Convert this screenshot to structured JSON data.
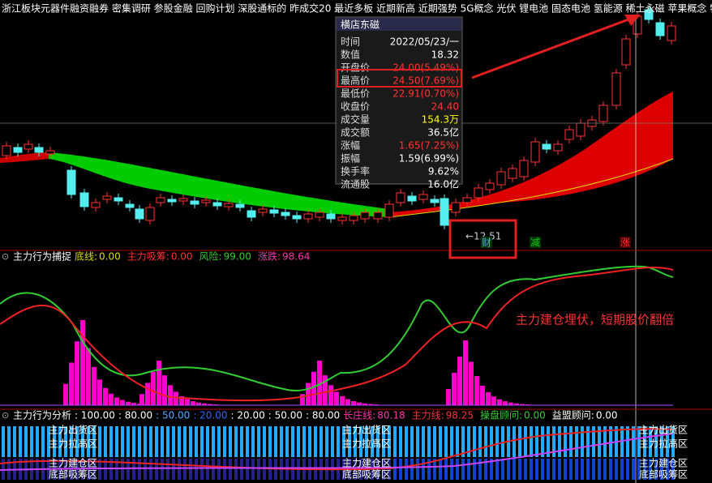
{
  "concept_bar": "浙江板块元器件融资融券 密集调研 参股金融 回购计划 深股通标的 昨成交20 最近多板 近期新高 近期强势 5G概念 光伏 锂电池 固态电池 氢能源 稀土永磁 苹果概念 特斯",
  "popup": {
    "title": "横店东磁",
    "rows": [
      [
        "时间",
        "2022/05/23/一"
      ],
      [
        "数值",
        "18.32"
      ],
      [
        "开盘价",
        "24.00(5.49%)"
      ],
      [
        "最高价",
        "24.50(7.69%)"
      ],
      [
        "最低价",
        "22.91(0.70%)"
      ],
      [
        "收盘价",
        "24.40"
      ],
      [
        "成交量",
        "154.3万"
      ],
      [
        "成交额",
        "36.5亿"
      ],
      [
        "涨幅",
        "1.65(7.25%)"
      ],
      [
        "振幅",
        "1.59(6.99%)"
      ],
      [
        "换手率",
        "9.62%"
      ],
      [
        "流通股",
        "16.0亿"
      ]
    ]
  },
  "main_chart": {
    "low_label": "←12.51",
    "markers": [
      "财",
      "减",
      "涨"
    ]
  },
  "panel2": {
    "title": "主力行为捕捉",
    "items": [
      [
        "底线:",
        "0.00"
      ],
      [
        "主力吸筹:",
        "0.00"
      ],
      [
        "风险:",
        "99.00"
      ],
      [
        "涨跌:",
        "98.64"
      ]
    ],
    "annotation": "主力建仓埋伏，短期股价翻倍"
  },
  "panel3": {
    "title": "主力行为分析",
    "scale": [
      ": 100.00",
      ": 80.00",
      ": 50.00",
      ": 20.00",
      ": 20.00",
      ": 50.00",
      ": 80.00"
    ],
    "items": [
      [
        "长庄线:",
        "80.18"
      ],
      [
        "主力线:",
        "98.25"
      ],
      [
        "操盘顾问:",
        "0.00"
      ],
      [
        "益盟顾问:",
        "0.00"
      ]
    ],
    "zones": [
      "主力出货区",
      "主力拉高区",
      "主力建仓区",
      "底部吸筹区"
    ]
  }
}
